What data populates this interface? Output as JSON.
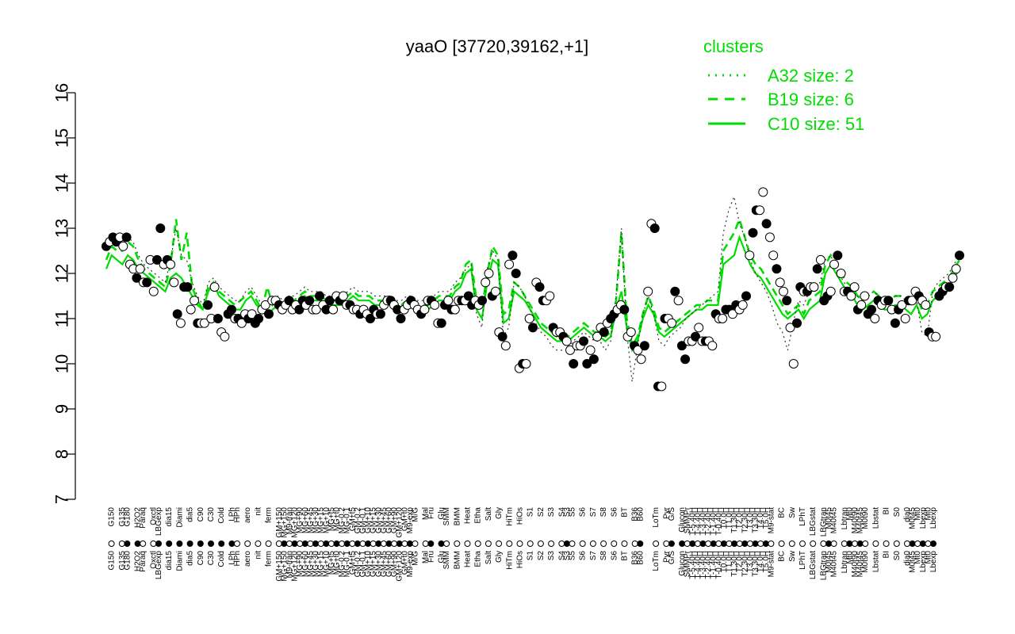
{
  "chart_data": {
    "type": "line",
    "title": "yaaO [37720,39162,+1]",
    "xlabel": "",
    "ylabel": "",
    "ylim": [
      7,
      16
    ],
    "yticks": [
      7,
      8,
      9,
      10,
      11,
      12,
      13,
      14,
      15,
      16
    ],
    "xlim": [
      0,
      163
    ],
    "legend": {
      "title": "clusters",
      "position": "top-right",
      "entries": [
        {
          "label": "A32 size: 2",
          "style": "dotted"
        },
        {
          "label": "B19 size: 6",
          "style": "dashed"
        },
        {
          "label": "C10 size: 51",
          "style": "solid"
        }
      ]
    },
    "colors": {
      "line": "#00dd00",
      "filled_point": "#000000",
      "open_point": "#ffffff",
      "axis": "#000000"
    },
    "xtick_labels": [
      {
        "i": 1,
        "label": "G150"
      },
      {
        "i": 3,
        "label": "G135"
      },
      {
        "i": 4,
        "label": "G180"
      },
      {
        "i": 6,
        "label": "H2O2"
      },
      {
        "i": 7,
        "label": "Paraq"
      },
      {
        "i": 9,
        "label": "Oxctl"
      },
      {
        "i": 10,
        "label": "LBGexp"
      },
      {
        "i": 12,
        "label": "dia15"
      },
      {
        "i": 14,
        "label": "Diami"
      },
      {
        "i": 16,
        "label": "dia5"
      },
      {
        "i": 18,
        "label": "C90"
      },
      {
        "i": 20,
        "label": "C30"
      },
      {
        "i": 22,
        "label": "Cold"
      },
      {
        "i": 24,
        "label": "LPh"
      },
      {
        "i": 25,
        "label": "HPh"
      },
      {
        "i": 27,
        "label": "aero"
      },
      {
        "i": 29,
        "label": "nit"
      },
      {
        "i": 31,
        "label": "ferm"
      },
      {
        "i": 33,
        "label": "GM+150"
      },
      {
        "i": 34,
        "label": "MG+150"
      },
      {
        "i": 35,
        "label": "M9-tran"
      },
      {
        "i": 36,
        "label": "MG+120"
      },
      {
        "i": 37,
        "label": "MG+90"
      },
      {
        "i": 38,
        "label": "MG+60"
      },
      {
        "i": 39,
        "label": "MG+45"
      },
      {
        "i": 40,
        "label": "MG+30"
      },
      {
        "i": 41,
        "label": "MG+15"
      },
      {
        "i": 42,
        "label": "MG+10"
      },
      {
        "i": 43,
        "label": "MG+t5"
      },
      {
        "i": 44,
        "label": "MG+t0"
      },
      {
        "i": 45,
        "label": "MG-0.2"
      },
      {
        "i": 46,
        "label": "MG-0.1"
      },
      {
        "i": 47,
        "label": "GM+t5"
      },
      {
        "i": 48,
        "label": "GM-0.2"
      },
      {
        "i": 49,
        "label": "GM-0.1"
      },
      {
        "i": 50,
        "label": "GM+10"
      },
      {
        "i": 51,
        "label": "GM+15"
      },
      {
        "i": 52,
        "label": "GM+30"
      },
      {
        "i": 53,
        "label": "GM+45"
      },
      {
        "i": 54,
        "label": "GM+60"
      },
      {
        "i": 55,
        "label": "GM+90"
      },
      {
        "i": 56,
        "label": "GM+120"
      },
      {
        "i": 57,
        "label": "GM+t0"
      },
      {
        "i": 58,
        "label": "M9-exp"
      },
      {
        "i": 59,
        "label": "M/G"
      },
      {
        "i": 61,
        "label": "Mal"
      },
      {
        "i": 62,
        "label": "Fru"
      },
      {
        "i": 64,
        "label": "Glu"
      },
      {
        "i": 65,
        "label": "SMM"
      },
      {
        "i": 67,
        "label": "BMM"
      },
      {
        "i": 69,
        "label": "Heat"
      },
      {
        "i": 71,
        "label": "Etha"
      },
      {
        "i": 73,
        "label": "Salt"
      },
      {
        "i": 75,
        "label": "Gly"
      },
      {
        "i": 77,
        "label": "HiTm"
      },
      {
        "i": 79,
        "label": "HiOs"
      },
      {
        "i": 81,
        "label": "S1"
      },
      {
        "i": 83,
        "label": "S2"
      },
      {
        "i": 85,
        "label": "S3"
      },
      {
        "i": 87,
        "label": "S4"
      },
      {
        "i": 88,
        "label": "S3"
      },
      {
        "i": 89,
        "label": "S5"
      },
      {
        "i": 91,
        "label": "S6"
      },
      {
        "i": 93,
        "label": "S7"
      },
      {
        "i": 95,
        "label": "S8"
      },
      {
        "i": 97,
        "label": "S6"
      },
      {
        "i": 99,
        "label": "BT"
      },
      {
        "i": 101,
        "label": "B36"
      },
      {
        "i": 102,
        "label": "B60"
      },
      {
        "i": 105,
        "label": "LoTm"
      },
      {
        "i": 107,
        "label": "Pyr"
      },
      {
        "i": 108,
        "label": "G/S"
      },
      {
        "i": 110,
        "label": "Glucon"
      },
      {
        "i": 111,
        "label": "SMMPr"
      },
      {
        "i": 112,
        "label": "T-5.40H"
      },
      {
        "i": 113,
        "label": "T-4.40H"
      },
      {
        "i": 114,
        "label": "T-3.40H"
      },
      {
        "i": 115,
        "label": "T-2.40H"
      },
      {
        "i": 116,
        "label": "T-1.40H"
      },
      {
        "i": 117,
        "label": "T-0.40H"
      },
      {
        "i": 118,
        "label": "T0.0H"
      },
      {
        "i": 119,
        "label": "T1.0H"
      },
      {
        "i": 120,
        "label": "T1.30H"
      },
      {
        "i": 121,
        "label": "T2.0H"
      },
      {
        "i": 122,
        "label": "T2.30H"
      },
      {
        "i": 123,
        "label": "T3.0H"
      },
      {
        "i": 124,
        "label": "T3.30H"
      },
      {
        "i": 125,
        "label": "T4.0H"
      },
      {
        "i": 126,
        "label": "T5.0H"
      },
      {
        "i": 127,
        "label": "M9-stat"
      },
      {
        "i": 129,
        "label": "BC"
      },
      {
        "i": 131,
        "label": "Sw"
      },
      {
        "i": 133,
        "label": "LPhT"
      },
      {
        "i": 135,
        "label": "LBGstat"
      },
      {
        "i": 137,
        "label": "LBGtran"
      },
      {
        "i": 138,
        "label": "M0t45"
      },
      {
        "i": 139,
        "label": "M40t45"
      },
      {
        "i": 141,
        "label": "Lbtran"
      },
      {
        "i": 142,
        "label": "Mt0"
      },
      {
        "i": 143,
        "label": "M40t90"
      },
      {
        "i": 144,
        "label": "M40t45"
      },
      {
        "i": 145,
        "label": "M0t90"
      },
      {
        "i": 147,
        "label": "Lbstat"
      },
      {
        "i": 149,
        "label": "BI"
      },
      {
        "i": 151,
        "label": "S0"
      },
      {
        "i": 153,
        "label": "dia0"
      },
      {
        "i": 154,
        "label": "M0t45"
      },
      {
        "i": 155,
        "label": "Mt0"
      },
      {
        "i": 156,
        "label": "Lbexp"
      },
      {
        "i": 157,
        "label": "Mt0"
      },
      {
        "i": 158,
        "label": "Lbexp"
      }
    ],
    "series": [
      {
        "style": "solid",
        "values": [
          12.1,
          12.4,
          12.3,
          12.2,
          12.4,
          12.3,
          12.1,
          12.0,
          11.9,
          11.8,
          11.7,
          11.6,
          11.9,
          12.0,
          11.9,
          11.7,
          11.5,
          11.3,
          11.2,
          11.6,
          11.8,
          11.5,
          11.4,
          11.3,
          11.2,
          11.2,
          11.4,
          11.5,
          11.3,
          11.2,
          11.1,
          11.2,
          11.3,
          11.2,
          11.3,
          11.3,
          11.4,
          11.5,
          11.4,
          11.4,
          11.4,
          11.3,
          11.3,
          11.3,
          11.3,
          11.4,
          11.5,
          11.4,
          11.4,
          11.4,
          11.3,
          11.3,
          11.3,
          11.3,
          11.2,
          11.2,
          11.3,
          11.3,
          11.2,
          11.2,
          11.2,
          11.3,
          11.4,
          11.4,
          11.4,
          11.6,
          11.7,
          12.0,
          12.1,
          11.2,
          11.0,
          11.8,
          12.3,
          12.2,
          10.9,
          11.0,
          11.6,
          11.5,
          11.4,
          11.2,
          11.0,
          10.8,
          10.7,
          10.6,
          10.5,
          10.5,
          10.5,
          10.6,
          10.7,
          10.8,
          10.7,
          10.6,
          10.6,
          10.5,
          10.6,
          11.2,
          11.6,
          10.8,
          10.3,
          10.5,
          11.0,
          11.3,
          11.1,
          10.7,
          10.6,
          10.7,
          10.8,
          10.9,
          11.0,
          11.1,
          11.2,
          11.2,
          11.3,
          11.3,
          11.3,
          12.2,
          12.3,
          12.4,
          12.8,
          12.5,
          12.2,
          12.0,
          11.9,
          11.7,
          11.5,
          11.3,
          11.1,
          11.0,
          11.1,
          11.2,
          11.0,
          11.2,
          11.3,
          11.4,
          12.0,
          12.2,
          12.0,
          11.8,
          11.6,
          11.5,
          11.3,
          11.2,
          11.3,
          11.4,
          11.3,
          11.2,
          11.2,
          11.3,
          11.3,
          11.2,
          11.1,
          11.3,
          11.0,
          11.1,
          11.4,
          11.5,
          11.6,
          11.7,
          11.9,
          12.1
        ]
      },
      {
        "style": "dashed",
        "values": [
          12.3,
          12.6,
          12.5,
          12.5,
          12.7,
          12.6,
          12.3,
          12.1,
          12.0,
          11.9,
          11.8,
          11.7,
          12.2,
          13.2,
          12.3,
          12.9,
          11.7,
          11.4,
          11.2,
          11.7,
          11.8,
          11.6,
          11.5,
          11.4,
          11.3,
          11.4,
          11.5,
          11.6,
          11.4,
          11.2,
          11.7,
          11.3,
          11.4,
          11.3,
          11.4,
          11.4,
          11.5,
          11.6,
          11.5,
          11.5,
          11.5,
          11.4,
          11.4,
          11.4,
          11.4,
          11.5,
          11.6,
          11.5,
          11.5,
          11.5,
          11.4,
          11.4,
          11.4,
          11.4,
          11.3,
          11.3,
          11.4,
          11.4,
          11.3,
          11.3,
          11.3,
          11.4,
          11.5,
          11.5,
          11.5,
          11.7,
          11.8,
          12.2,
          12.3,
          11.4,
          11.2,
          12.0,
          12.6,
          12.4,
          11.1,
          11.2,
          11.8,
          11.7,
          11.5,
          11.3,
          11.1,
          10.9,
          10.8,
          10.7,
          10.6,
          10.6,
          10.6,
          10.7,
          10.8,
          10.9,
          10.8,
          10.7,
          10.7,
          10.6,
          10.7,
          11.4,
          12.9,
          11.0,
          10.4,
          10.6,
          11.1,
          11.5,
          11.2,
          10.8,
          10.7,
          10.8,
          10.9,
          11.0,
          11.1,
          11.2,
          11.3,
          11.3,
          11.4,
          11.4,
          11.4,
          12.5,
          12.7,
          12.9,
          13.2,
          12.8,
          12.4,
          12.2,
          12.1,
          11.9,
          11.7,
          11.5,
          11.3,
          11.1,
          11.2,
          11.3,
          11.1,
          11.4,
          11.5,
          11.6,
          12.2,
          12.4,
          12.2,
          12.0,
          11.8,
          11.7,
          11.5,
          11.4,
          11.5,
          11.6,
          11.5,
          11.4,
          11.4,
          11.5,
          11.5,
          11.4,
          11.3,
          11.5,
          11.2,
          11.3,
          11.6,
          11.7,
          11.8,
          11.9,
          12.1,
          12.3
        ]
      },
      {
        "style": "dotted",
        "values": [
          12.6,
          12.8,
          12.7,
          12.7,
          12.8,
          12.7,
          12.4,
          12.2,
          12.1,
          12.0,
          11.9,
          11.8,
          12.3,
          13.0,
          12.4,
          12.3,
          11.8,
          11.5,
          11.3,
          11.8,
          11.9,
          11.7,
          11.6,
          11.5,
          11.4,
          11.4,
          11.6,
          11.7,
          11.5,
          11.3,
          11.4,
          11.4,
          11.5,
          11.4,
          11.5,
          11.5,
          11.6,
          11.7,
          11.6,
          11.6,
          11.6,
          11.5,
          11.5,
          11.5,
          11.5,
          11.6,
          11.7,
          11.6,
          11.6,
          11.6,
          11.5,
          11.5,
          11.5,
          11.5,
          11.4,
          11.4,
          11.5,
          11.5,
          11.4,
          11.4,
          11.4,
          11.5,
          11.6,
          11.6,
          11.6,
          11.8,
          11.9,
          12.1,
          12.2,
          11.1,
          10.8,
          12.1,
          12.5,
          12.3,
          10.6,
          10.8,
          11.8,
          11.7,
          11.5,
          11.2,
          10.9,
          10.7,
          10.6,
          10.4,
          10.3,
          10.3,
          10.3,
          10.5,
          10.6,
          10.7,
          10.6,
          10.5,
          10.5,
          10.3,
          10.5,
          11.5,
          13.0,
          10.7,
          9.6,
          10.4,
          11.1,
          11.5,
          11.1,
          10.5,
          10.4,
          10.6,
          10.7,
          10.8,
          11.0,
          11.1,
          11.2,
          11.3,
          11.4,
          11.5,
          11.6,
          12.9,
          13.4,
          13.7,
          13.1,
          12.8,
          12.3,
          12.0,
          11.8,
          11.6,
          11.3,
          10.9,
          10.7,
          10.3,
          10.9,
          11.4,
          11.3,
          11.6,
          11.7,
          11.8,
          12.3,
          12.4,
          12.1,
          11.9,
          11.7,
          11.6,
          11.5,
          11.4,
          11.5,
          11.6,
          11.5,
          11.4,
          11.4,
          11.5,
          11.5,
          11.4,
          11.3,
          11.4,
          10.7,
          10.6,
          11.6,
          11.8,
          11.9,
          12.0,
          12.2,
          12.4
        ]
      }
    ],
    "points": {
      "values": [
        12.6,
        12.7,
        12.8,
        12.7,
        12.8,
        12.6,
        12.8,
        12.2,
        12.1,
        11.9,
        12.1,
        11.8,
        11.8,
        12.3,
        11.6,
        12.3,
        13.0,
        12.2,
        12.3,
        12.2,
        11.8,
        11.1,
        10.9,
        11.7,
        11.7,
        11.2,
        11.4,
        10.9,
        10.9,
        10.9,
        11.3,
        11.0,
        11.7,
        11.0,
        10.7,
        10.6,
        11.1,
        11.2,
        11.0,
        11.0,
        10.9,
        11.1,
        11.0,
        11.1,
        10.9,
        11.0,
        11.2,
        11.3,
        11.1,
        11.4,
        11.4,
        11.3,
        11.2,
        11.3,
        11.4,
        11.2,
        11.3,
        11.2,
        11.4,
        11.3,
        11.4,
        11.2,
        11.2,
        11.5,
        11.3,
        11.2,
        11.4,
        11.2,
        11.5,
        11.4,
        11.5,
        11.3,
        11.3,
        11.2,
        11.2,
        11.1,
        11.2,
        11.1,
        11.0,
        11.2,
        11.1,
        11.1,
        11.3,
        11.4,
        11.4,
        11.3,
        11.2,
        11.0,
        11.2,
        11.3,
        11.4,
        11.3,
        11.2,
        11.1,
        11.2,
        11.4,
        11.4,
        11.3,
        10.9,
        10.9,
        11.3,
        11.4,
        11.2,
        11.2,
        11.4,
        11.4,
        11.4,
        11.5,
        11.3,
        11.4,
        11.3,
        11.4,
        11.8,
        12.0,
        11.5,
        11.6,
        10.7,
        10.6,
        10.4,
        12.2,
        12.4,
        12.0,
        9.9,
        10.0,
        10.0,
        11.0,
        10.8,
        11.8,
        11.7,
        11.4,
        11.4,
        11.5,
        10.8,
        10.7,
        10.7,
        10.6,
        10.5,
        10.3,
        10.0,
        10.4,
        10.4,
        10.5,
        10.0,
        10.3,
        10.1,
        10.6,
        10.8,
        10.7,
        10.9,
        11.0,
        11.1,
        11.2,
        11.3,
        11.2,
        10.6,
        10.7,
        10.4,
        10.3,
        10.1,
        10.4,
        11.6,
        13.1,
        13.0,
        9.5,
        9.5,
        11.0,
        11.0,
        10.9,
        11.6,
        11.4,
        10.4,
        10.1,
        10.5,
        10.5,
        10.6,
        10.8,
        10.5,
        10.5,
        10.5,
        10.4,
        11.1,
        11.0,
        11.0,
        11.2,
        11.2,
        11.1,
        11.3,
        11.2,
        11.3,
        11.5,
        12.4,
        12.9,
        13.4,
        13.4,
        13.8,
        13.1,
        12.8,
        12.4,
        12.1,
        11.8,
        11.6,
        11.4,
        10.8,
        10.0,
        10.9,
        11.7,
        11.6,
        11.6,
        11.7,
        11.7,
        12.1,
        12.3,
        11.4,
        11.5,
        11.6,
        12.2,
        12.4,
        12.0,
        11.6,
        11.6,
        11.5,
        11.7,
        11.2,
        11.3,
        11.5,
        11.1,
        11.2,
        11.0,
        11.4,
        11.3,
        11.4,
        11.4,
        11.2,
        10.9,
        11.2,
        11.3,
        11.0,
        11.4,
        11.4,
        11.6,
        11.5,
        11.4,
        11.3,
        10.7,
        10.6,
        10.6,
        11.5,
        11.6,
        11.7,
        11.7,
        11.9,
        12.1,
        12.4
      ],
      "filled_pattern": "mixed"
    }
  }
}
